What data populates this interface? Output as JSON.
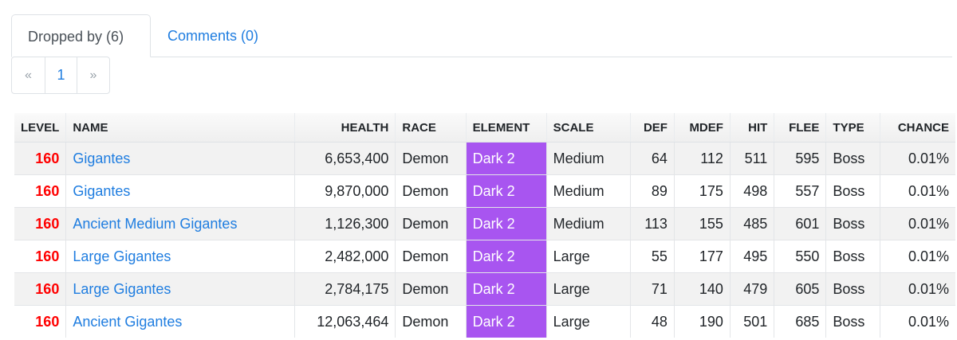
{
  "tabs": [
    {
      "label": "Dropped by (6)"
    },
    {
      "label": "Comments (0)"
    }
  ],
  "pagination": {
    "prev": "«",
    "current": "1",
    "next": "»"
  },
  "table": {
    "headers": {
      "level": "LEVEL",
      "name": "NAME",
      "health": "HEALTH",
      "race": "RACE",
      "element": "ELEMENT",
      "scale": "SCALE",
      "def": "DEF",
      "mdef": "MDEF",
      "hit": "HIT",
      "flee": "FLEE",
      "type": "TYPE",
      "chance": "CHANCE"
    },
    "rows": [
      {
        "level": "160",
        "name": "Gigantes",
        "health": "6,653,400",
        "race": "Demon",
        "element": "Dark 2",
        "scale": "Medium",
        "def": "64",
        "mdef": "112",
        "hit": "511",
        "flee": "595",
        "type": "Boss",
        "chance": "0.01%"
      },
      {
        "level": "160",
        "name": "Gigantes",
        "health": "9,870,000",
        "race": "Demon",
        "element": "Dark 2",
        "scale": "Medium",
        "def": "89",
        "mdef": "175",
        "hit": "498",
        "flee": "557",
        "type": "Boss",
        "chance": "0.01%"
      },
      {
        "level": "160",
        "name": "Ancient Medium Gigantes",
        "health": "1,126,300",
        "race": "Demon",
        "element": "Dark 2",
        "scale": "Medium",
        "def": "113",
        "mdef": "155",
        "hit": "485",
        "flee": "601",
        "type": "Boss",
        "chance": "0.01%"
      },
      {
        "level": "160",
        "name": "Large Gigantes",
        "health": "2,482,000",
        "race": "Demon",
        "element": "Dark 2",
        "scale": "Large",
        "def": "55",
        "mdef": "177",
        "hit": "495",
        "flee": "550",
        "type": "Boss",
        "chance": "0.01%"
      },
      {
        "level": "160",
        "name": "Large Gigantes",
        "health": "2,784,175",
        "race": "Demon",
        "element": "Dark 2",
        "scale": "Large",
        "def": "71",
        "mdef": "140",
        "hit": "479",
        "flee": "605",
        "type": "Boss",
        "chance": "0.01%"
      },
      {
        "level": "160",
        "name": "Ancient Gigantes",
        "health": "12,063,464",
        "race": "Demon",
        "element": "Dark 2",
        "scale": "Large",
        "def": "48",
        "mdef": "190",
        "hit": "501",
        "flee": "685",
        "type": "Boss",
        "chance": "0.01%"
      }
    ]
  },
  "colors": {
    "element_dark": "#a855f0",
    "level": "#ff0000",
    "link": "#1f7de0"
  }
}
